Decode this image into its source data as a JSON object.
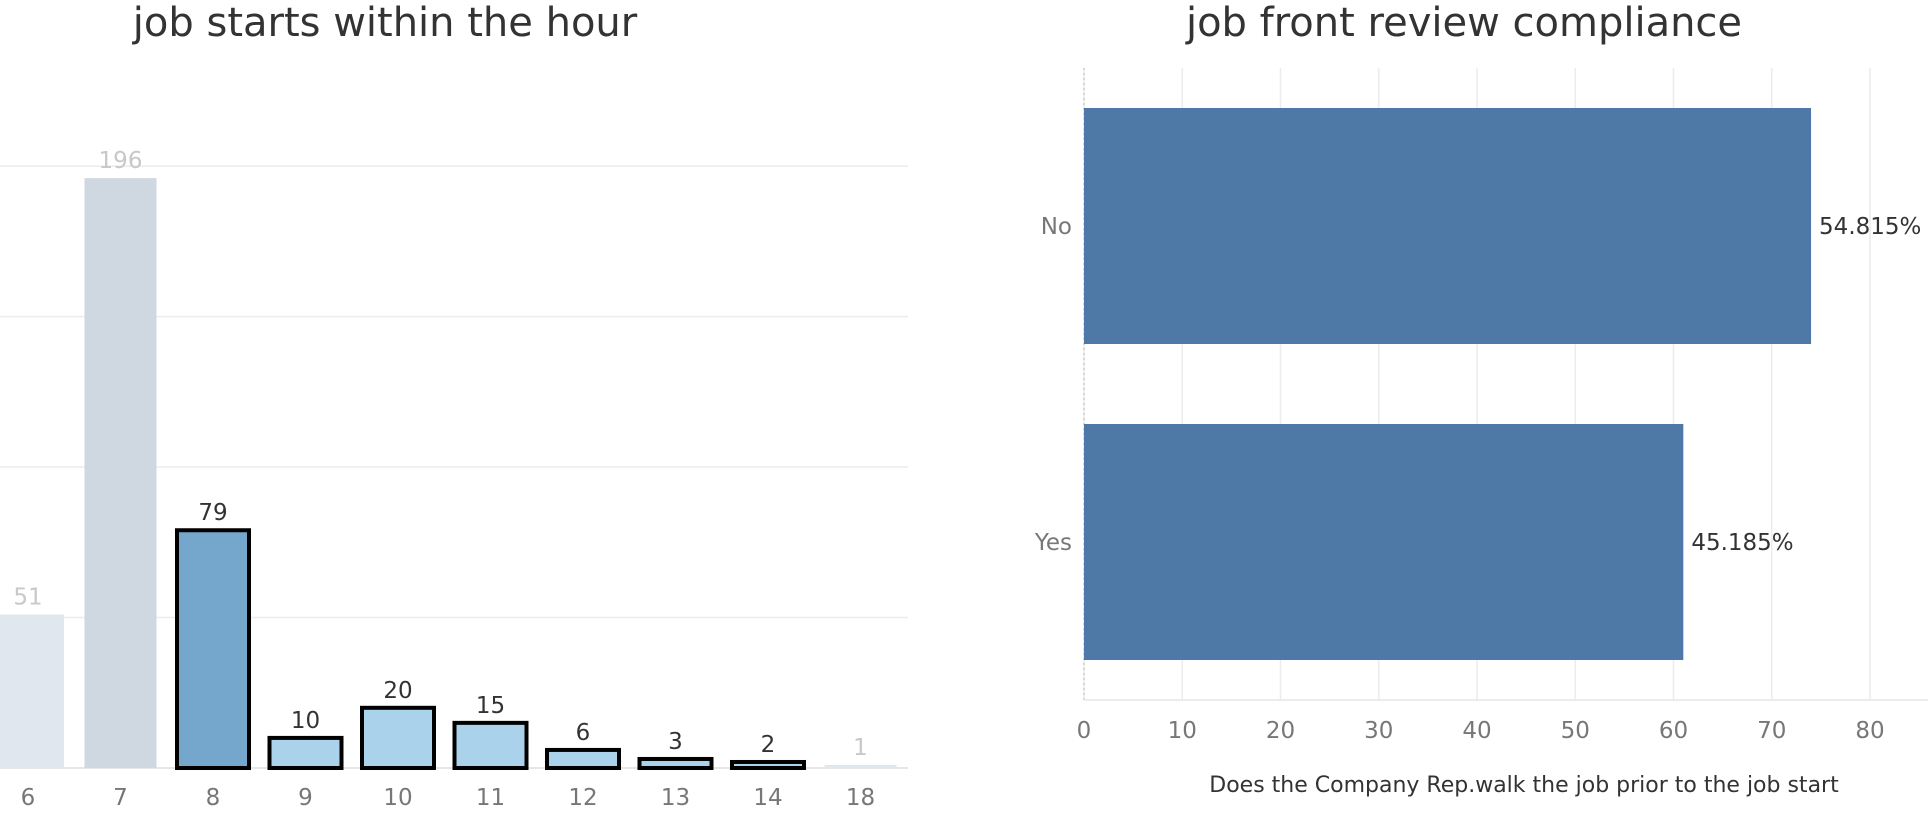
{
  "chart_data": [
    {
      "type": "bar",
      "title": "job starts within the hour",
      "categories": [
        "6",
        "7",
        "8",
        "9",
        "10",
        "11",
        "12",
        "13",
        "14",
        "18"
      ],
      "values": [
        51,
        196,
        79,
        10,
        20,
        15,
        6,
        3,
        2,
        1
      ],
      "value_labels": [
        "51",
        "196",
        "79",
        "10",
        "20",
        "15",
        "6",
        "3",
        "2",
        "1"
      ],
      "highlighted": [
        false,
        false,
        true,
        true,
        true,
        true,
        true,
        true,
        true,
        false
      ],
      "colors": {
        "selected_dark": "#75a7cc",
        "selected_light": "#abd2eb",
        "dimmed_bar": "#cfd7e1",
        "dimmed_bar_light": "#e1e7ef",
        "dimmed_label": "#c8c8c8",
        "label": "#333333",
        "outline": "#000000",
        "grid": "#ececec"
      },
      "ylim": [
        0,
        210
      ],
      "grid": true,
      "xlabel": "",
      "ylabel": ""
    },
    {
      "type": "bar",
      "orientation": "horizontal",
      "title": "job front review compliance",
      "categories": [
        "No",
        "Yes"
      ],
      "values": [
        74,
        61
      ],
      "value_labels": [
        "54.815%",
        "45.185%"
      ],
      "xticks": [
        "0",
        "10",
        "20",
        "30",
        "40",
        "50",
        "60",
        "70",
        "80"
      ],
      "xlim": [
        0,
        82
      ],
      "xlabel": "Does the Company Rep.walk the job prior to the job start",
      "ylabel": "",
      "grid": true,
      "colors": {
        "bar": "#4e79a7",
        "label": "#333333",
        "tick": "#777777",
        "grid": "#ececec"
      }
    }
  ]
}
